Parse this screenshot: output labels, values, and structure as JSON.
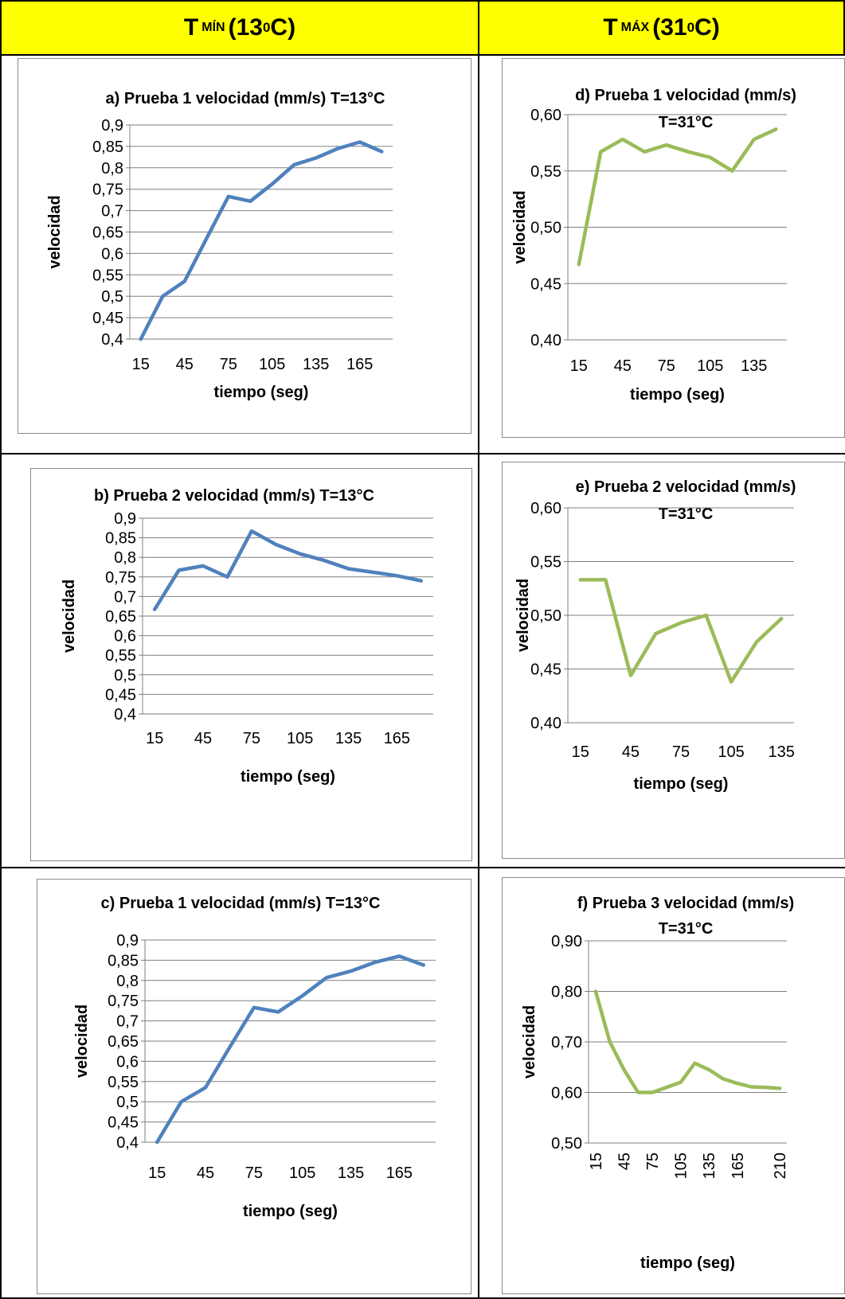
{
  "header": {
    "left": {
      "main": "T",
      "sub": "MÍN",
      "value": "(13 ",
      "sup": "0",
      "unit": "C)"
    },
    "right": {
      "main": "T",
      "sub": "MÁX",
      "value": "(31 ",
      "sup": "0",
      "unit": "C)"
    }
  },
  "colors": {
    "blue_series": "#4f81bd",
    "green_series": "#9bbb59",
    "header_bg": "#ffff00"
  },
  "chart_data": [
    {
      "id": "a",
      "type": "line",
      "title": [
        "a) Prueba 1 velocidad (mm/s) T=13°C"
      ],
      "xlabel": "tiempo (seg)",
      "ylabel": "velocidad",
      "x": [
        15,
        30,
        45,
        60,
        75,
        90,
        105,
        120,
        135,
        150,
        165,
        180
      ],
      "x_tick_labels": [
        "15",
        "45",
        "75",
        "105",
        "135",
        "165"
      ],
      "series": [
        {
          "values": [
            0.4,
            0.5,
            0.535,
            0.635,
            0.733,
            0.722,
            0.762,
            0.807,
            0.823,
            0.845,
            0.86,
            0.838
          ]
        }
      ],
      "ylim": [
        0.4,
        0.9
      ],
      "y_ticks": [
        0.4,
        0.45,
        0.5,
        0.55,
        0.6,
        0.65,
        0.7,
        0.75,
        0.8,
        0.85,
        0.9
      ],
      "y_tick_labels": [
        "0,4",
        "0,45",
        "0,5",
        "0,55",
        "0,6",
        "0,65",
        "0,7",
        "0,75",
        "0,8",
        "0,85",
        "0,9"
      ],
      "color": "#4f81bd",
      "grid": true
    },
    {
      "id": "b",
      "type": "line",
      "title": [
        "b) Prueba 2 velocidad (mm/s) T=13°C"
      ],
      "xlabel": "tiempo (seg)",
      "ylabel": "velocidad",
      "x": [
        15,
        30,
        45,
        60,
        75,
        90,
        105,
        120,
        135,
        150,
        165,
        180
      ],
      "x_tick_labels": [
        "15",
        "45",
        "75",
        "105",
        "135",
        "165"
      ],
      "series": [
        {
          "values": [
            0.667,
            0.767,
            0.778,
            0.75,
            0.867,
            0.833,
            0.809,
            0.792,
            0.771,
            0.762,
            0.753,
            0.74
          ]
        }
      ],
      "ylim": [
        0.4,
        0.9
      ],
      "y_ticks": [
        0.4,
        0.45,
        0.5,
        0.55,
        0.6,
        0.65,
        0.7,
        0.75,
        0.8,
        0.85,
        0.9
      ],
      "y_tick_labels": [
        "0,4",
        "0,45",
        "0,5",
        "0,55",
        "0,6",
        "0,65",
        "0,7",
        "0,75",
        "0,8",
        "0,85",
        "0,9"
      ],
      "color": "#4f81bd",
      "grid": true
    },
    {
      "id": "c",
      "type": "line",
      "title": [
        "c) Prueba 1 velocidad (mm/s) T=13°C"
      ],
      "xlabel": "tiempo (seg)",
      "ylabel": "velocidad",
      "x": [
        15,
        30,
        45,
        60,
        75,
        90,
        105,
        120,
        135,
        150,
        165,
        180
      ],
      "x_tick_labels": [
        "15",
        "45",
        "75",
        "105",
        "135",
        "165"
      ],
      "series": [
        {
          "values": [
            0.4,
            0.5,
            0.535,
            0.635,
            0.733,
            0.722,
            0.762,
            0.807,
            0.823,
            0.845,
            0.86,
            0.838
          ]
        }
      ],
      "ylim": [
        0.4,
        0.9
      ],
      "y_ticks": [
        0.4,
        0.45,
        0.5,
        0.55,
        0.6,
        0.65,
        0.7,
        0.75,
        0.8,
        0.85,
        0.9
      ],
      "y_tick_labels": [
        "0,4",
        "0,45",
        "0,5",
        "0,55",
        "0,6",
        "0,65",
        "0,7",
        "0,75",
        "0,8",
        "0,85",
        "0,9"
      ],
      "color": "#4f81bd",
      "grid": true
    },
    {
      "id": "d",
      "type": "line",
      "title": [
        "d) Prueba 1 velocidad (mm/s)",
        "T=31°C"
      ],
      "xlabel": "tiempo (seg)",
      "ylabel": "velocidad",
      "x": [
        15,
        30,
        45,
        60,
        75,
        90,
        105,
        120,
        135,
        150
      ],
      "x_tick_labels": [
        "15",
        "45",
        "75",
        "105",
        "135"
      ],
      "series": [
        {
          "values": [
            0.467,
            0.567,
            0.578,
            0.567,
            0.573,
            0.567,
            0.562,
            0.55,
            0.578,
            0.587
          ]
        }
      ],
      "ylim": [
        0.4,
        0.6
      ],
      "y_ticks": [
        0.4,
        0.45,
        0.5,
        0.55,
        0.6
      ],
      "y_tick_labels": [
        "0,40",
        "0,45",
        "0,50",
        "0,55",
        "0,60"
      ],
      "color": "#9bbb59",
      "grid": true
    },
    {
      "id": "e",
      "type": "line",
      "title": [
        "e) Prueba 2 velocidad (mm/s)",
        "T=31°C"
      ],
      "xlabel": "tiempo (seg)",
      "ylabel": "velocidad",
      "x": [
        15,
        30,
        45,
        60,
        75,
        90,
        105,
        120,
        135
      ],
      "x_tick_labels": [
        "15",
        "45",
        "75",
        "105",
        "135"
      ],
      "series": [
        {
          "values": [
            0.533,
            0.533,
            0.444,
            0.483,
            0.493,
            0.5,
            0.438,
            0.475,
            0.497
          ]
        }
      ],
      "ylim": [
        0.4,
        0.6
      ],
      "y_ticks": [
        0.4,
        0.45,
        0.5,
        0.55,
        0.6
      ],
      "y_tick_labels": [
        "0,40",
        "0,45",
        "0,50",
        "0,55",
        "0,60"
      ],
      "color": "#9bbb59",
      "grid": true
    },
    {
      "id": "f",
      "type": "line",
      "title": [
        "f) Prueba 3 velocidad (mm/s)",
        "T=31°C"
      ],
      "xlabel": "tiempo (seg)",
      "ylabel": "velocidad",
      "x": [
        15,
        30,
        45,
        60,
        75,
        90,
        105,
        120,
        135,
        150,
        165,
        180,
        195,
        210
      ],
      "x_tick_labels": [
        "15",
        "45",
        "75",
        "105",
        "135",
        "165",
        "210"
      ],
      "series": [
        {
          "values": [
            0.8,
            0.7,
            0.645,
            0.6,
            0.6,
            0.61,
            0.62,
            0.658,
            0.645,
            0.627,
            0.618,
            0.611,
            0.61,
            0.608
          ]
        }
      ],
      "ylim": [
        0.5,
        0.9
      ],
      "y_ticks": [
        0.5,
        0.6,
        0.7,
        0.8,
        0.9
      ],
      "y_tick_labels": [
        "0,50",
        "0,60",
        "0,70",
        "0,80",
        "0,90"
      ],
      "color": "#9bbb59",
      "grid": true,
      "x_tick_rotation": "vertical"
    }
  ]
}
